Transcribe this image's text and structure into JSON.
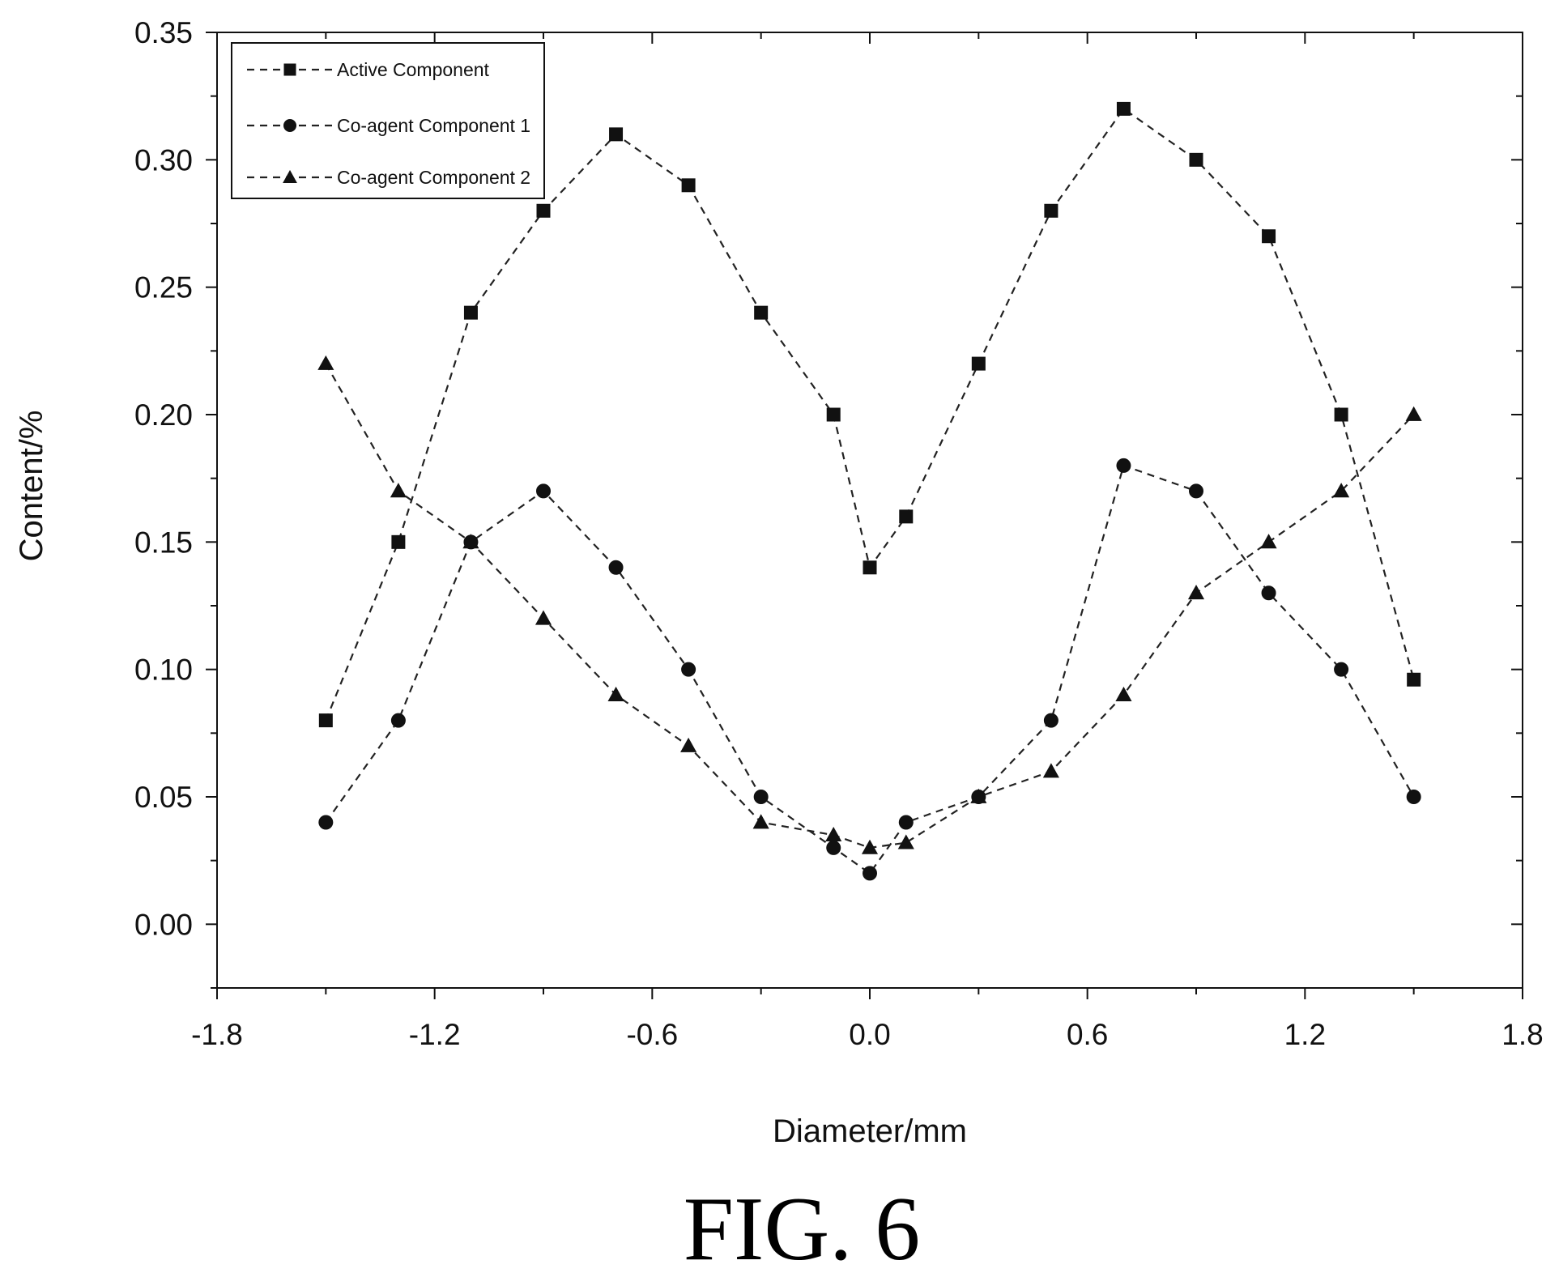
{
  "caption": "FIG. 6",
  "chart_data": {
    "type": "line",
    "title": "",
    "xlabel": "Diameter/mm",
    "ylabel": "Content/%",
    "xlim": [
      -1.8,
      1.8
    ],
    "ylim": [
      -0.025,
      0.35
    ],
    "xticks": [
      -1.8,
      -1.2,
      -0.6,
      0.0,
      0.6,
      1.2,
      1.8
    ],
    "yticks": [
      0.0,
      0.05,
      0.1,
      0.15,
      0.2,
      0.25,
      0.3,
      0.35
    ],
    "xtick_labels": [
      "-1.8",
      "-1.2",
      "-0.6",
      "0.0",
      "0.6",
      "1.2",
      "1.8"
    ],
    "ytick_labels": [
      "0.00",
      "0.05",
      "0.10",
      "0.15",
      "0.20",
      "0.25",
      "0.30",
      "0.35"
    ],
    "legend_position": "top-left",
    "grid": false,
    "series": [
      {
        "name": "Active Component",
        "marker": "square",
        "x": [
          -1.5,
          -1.3,
          -1.1,
          -0.9,
          -0.7,
          -0.5,
          -0.3,
          -0.1,
          0.0,
          0.1,
          0.3,
          0.5,
          0.7,
          0.9,
          1.1,
          1.3,
          1.5
        ],
        "y": [
          0.08,
          0.15,
          0.24,
          0.28,
          0.31,
          0.29,
          0.24,
          0.2,
          0.14,
          0.16,
          0.22,
          0.28,
          0.32,
          0.3,
          0.27,
          0.2,
          0.096
        ]
      },
      {
        "name": "Co-agent Component 1",
        "marker": "circle",
        "x": [
          -1.5,
          -1.3,
          -1.1,
          -0.9,
          -0.7,
          -0.5,
          -0.3,
          -0.1,
          0.0,
          0.1,
          0.3,
          0.5,
          0.7,
          0.9,
          1.1,
          1.3,
          1.5
        ],
        "y": [
          0.04,
          0.08,
          0.15,
          0.17,
          0.14,
          0.1,
          0.05,
          0.03,
          0.02,
          0.04,
          0.05,
          0.08,
          0.18,
          0.17,
          0.13,
          0.1,
          0.05
        ]
      },
      {
        "name": "Co-agent Component 2",
        "marker": "triangle",
        "x": [
          -1.5,
          -1.3,
          -1.1,
          -0.9,
          -0.7,
          -0.5,
          -0.3,
          -0.1,
          0.0,
          0.1,
          0.3,
          0.5,
          0.7,
          0.9,
          1.1,
          1.3,
          1.5
        ],
        "y": [
          0.22,
          0.17,
          0.15,
          0.12,
          0.09,
          0.07,
          0.04,
          0.035,
          0.03,
          0.032,
          0.05,
          0.06,
          0.09,
          0.13,
          0.15,
          0.17,
          0.2
        ]
      }
    ]
  }
}
